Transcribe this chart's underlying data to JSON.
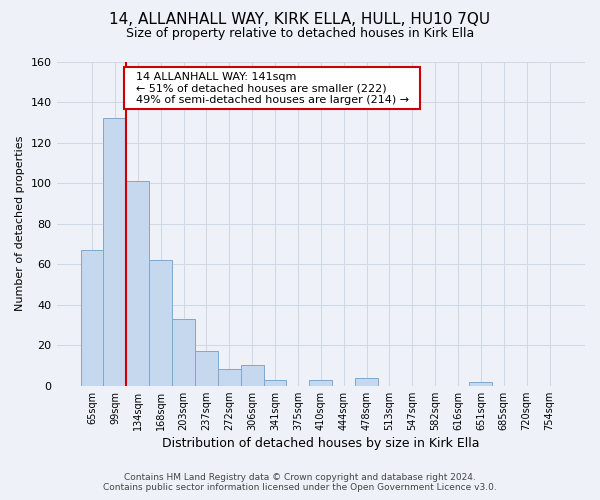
{
  "title1": "14, ALLANHALL WAY, KIRK ELLA, HULL, HU10 7QU",
  "title2": "Size of property relative to detached houses in Kirk Ella",
  "xlabel": "Distribution of detached houses by size in Kirk Ella",
  "ylabel": "Number of detached properties",
  "bin_labels": [
    "65sqm",
    "99sqm",
    "134sqm",
    "168sqm",
    "203sqm",
    "237sqm",
    "272sqm",
    "306sqm",
    "341sqm",
    "375sqm",
    "410sqm",
    "444sqm",
    "478sqm",
    "513sqm",
    "547sqm",
    "582sqm",
    "616sqm",
    "651sqm",
    "685sqm",
    "720sqm",
    "754sqm"
  ],
  "bar_heights": [
    67,
    132,
    101,
    62,
    33,
    17,
    8,
    10,
    3,
    0,
    3,
    0,
    4,
    0,
    0,
    0,
    0,
    2,
    0,
    0,
    0
  ],
  "bar_color": "#c5d8ed",
  "bar_edge_color": "#7fa8cc",
  "property_line_label": "14 ALLANHALL WAY: 141sqm",
  "annotation_line1": "← 51% of detached houses are smaller (222)",
  "annotation_line2": "49% of semi-detached houses are larger (214) →",
  "vline_color": "#cc0000",
  "vline_x": 1.5,
  "ylim": [
    0,
    160
  ],
  "yticks": [
    0,
    20,
    40,
    60,
    80,
    100,
    120,
    140,
    160
  ],
  "footer1": "Contains HM Land Registry data © Crown copyright and database right 2024.",
  "footer2": "Contains public sector information licensed under the Open Government Licence v3.0.",
  "annotation_box_facecolor": "#ffffff",
  "annotation_box_edgecolor": "#cc0000",
  "background_color": "#eef2f8",
  "grid_color": "#d0d8e8"
}
